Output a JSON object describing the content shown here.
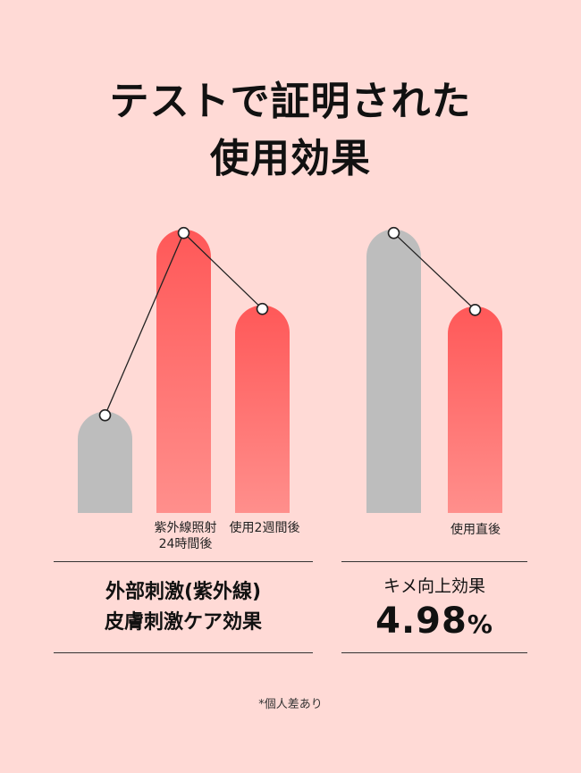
{
  "title": {
    "line1": "テストで証明された",
    "line2": "使用効果"
  },
  "chart_data": [
    {
      "type": "bar",
      "categories": [
        "",
        "紫外線照射 24時間後",
        "使用2週間後"
      ],
      "category_lines": [
        [
          ""
        ],
        [
          "紫外線照射",
          "24時間後"
        ],
        [
          "使用2週間後"
        ]
      ],
      "values": [
        100,
        280,
        205
      ],
      "ylim": [
        0,
        300
      ],
      "bar_colors": [
        "#bdbdbd",
        "#ff5a5a",
        "#ff5a5a"
      ],
      "trend_line": true,
      "caption": [
        "外部刺激(紫外線)",
        "皮膚刺激ケア効果"
      ]
    },
    {
      "type": "bar",
      "categories": [
        "",
        "使用直後"
      ],
      "category_lines": [
        [
          ""
        ],
        [
          "使用直後"
        ]
      ],
      "values": [
        280,
        204
      ],
      "ylim": [
        0,
        300
      ],
      "bar_colors": [
        "#bdbdbd",
        "#ff5a5a"
      ],
      "trend_line": true,
      "caption_label": "キメ向上効果",
      "caption_value": "4.98",
      "caption_unit": "%"
    }
  ],
  "footnote": "*個人差あり"
}
